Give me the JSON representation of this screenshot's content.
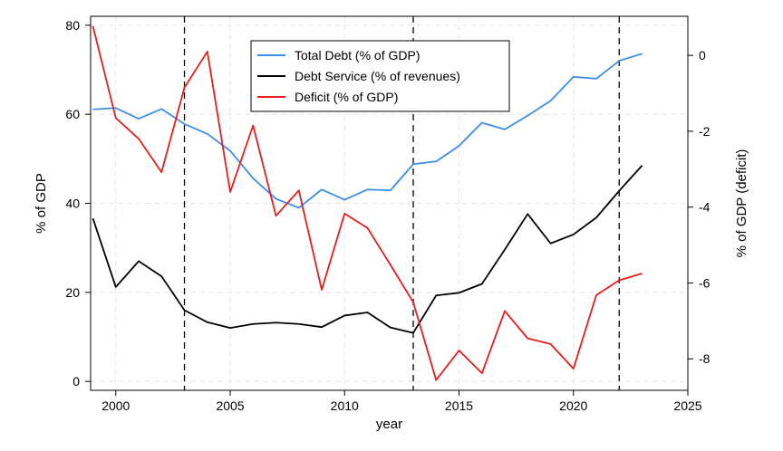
{
  "chart_data": {
    "type": "line",
    "title": "",
    "xlabel": "year",
    "ylabel": "% of GDP",
    "ylabel_right": "% of GDP (deficit)",
    "xlim": [
      1998.9,
      2025
    ],
    "ylim": [
      -2,
      82
    ],
    "ylim_right": [
      -8.83,
      1.03
    ],
    "x_ticks": [
      2000,
      2005,
      2010,
      2015,
      2020,
      2025
    ],
    "y_ticks": [
      0,
      20,
      40,
      60,
      80
    ],
    "y_ticks_right": [
      -8,
      -6,
      -4,
      -2,
      0
    ],
    "grid": true,
    "vlines": [
      2003,
      2013,
      2022
    ],
    "legend_position": "top-center",
    "x": [
      1999,
      2000,
      2001,
      2002,
      2003,
      2004,
      2005,
      2006,
      2007,
      2008,
      2009,
      2010,
      2011,
      2012,
      2013,
      2014,
      2015,
      2016,
      2017,
      2018,
      2019,
      2020,
      2021,
      2022,
      2023
    ],
    "series": [
      {
        "name": "Total Debt (% of GDP)",
        "axis": "left",
        "color": "#3d8ee6",
        "values": [
          61.1,
          61.4,
          59.0,
          61.2,
          57.8,
          55.6,
          51.8,
          45.6,
          41.0,
          39.0,
          43.1,
          40.8,
          43.1,
          42.9,
          48.8,
          49.4,
          52.9,
          58.1,
          56.6,
          59.7,
          63.0,
          68.4,
          68.0,
          72.0,
          73.6
        ]
      },
      {
        "name": "Debt Service (% of revenues)",
        "axis": "left",
        "color": "#000000",
        "values": [
          36.6,
          21.2,
          27.0,
          23.6,
          16.0,
          13.3,
          12.0,
          12.9,
          13.2,
          12.9,
          12.2,
          14.8,
          15.5,
          12.1,
          10.9,
          19.3,
          19.9,
          21.9,
          29.6,
          37.6,
          31.0,
          33.0,
          36.8,
          42.8,
          48.5
        ]
      },
      {
        "name": "Deficit (% of GDP)",
        "axis": "right",
        "color": "#e81c1c",
        "values": [
          0.77,
          -1.65,
          -2.2,
          -3.08,
          -0.85,
          0.1,
          -3.6,
          -1.85,
          -4.23,
          -3.56,
          -6.18,
          -4.17,
          -4.55,
          -5.52,
          -6.51,
          -8.56,
          -7.78,
          -8.38,
          -6.74,
          -7.46,
          -7.61,
          -8.26,
          -6.32,
          -5.93,
          -5.75
        ]
      }
    ]
  }
}
